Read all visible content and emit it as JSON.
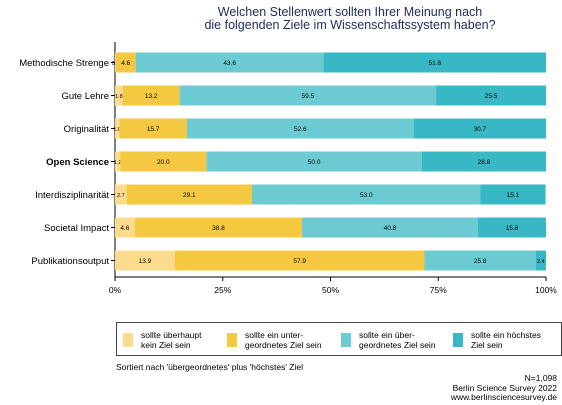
{
  "title": {
    "line1": "Welchen Stellenwert sollten Ihrer Meinung nach",
    "line2": "die folgenden Ziele im Wissenschaftssystem haben?"
  },
  "footnote": "Sortiert nach 'übergeordnetes' plus 'höchstes' Ziel",
  "credits": {
    "n": "N=1,098",
    "survey": "Berlin Science Survey 2022",
    "url": "www.berlinsciencesurvey.de"
  },
  "colors": {
    "s1": "#fbdc8e",
    "s2": "#f5c842",
    "s3": "#6ccad3",
    "s4": "#38b7c4"
  },
  "chart_data": {
    "type": "bar",
    "orientation": "horizontal",
    "stacked": true,
    "title": "Welchen Stellenwert sollten Ihrer Meinung nach die folgenden Ziele im Wissenschaftssystem haben?",
    "categories": [
      "Methodische Strenge",
      "Gute Lehre",
      "Originalität",
      "Open Science",
      "Interdisziplinarität",
      "Societal Impact",
      "Publikationsoutput"
    ],
    "bold_categories": [
      "Open Science"
    ],
    "series": [
      {
        "name": "sollte überhaupt\nkein Ziel sein",
        "values": [
          0.2,
          1.8,
          1.0,
          1.2,
          2.7,
          4.6,
          13.9
        ],
        "labels": [
          "0.2",
          "1.8",
          "1.0",
          "1.2",
          "2.7",
          "4.6",
          "13.9"
        ]
      },
      {
        "name": "sollte ein unter-\ngeordnetes Ziel sein",
        "values": [
          4.6,
          13.2,
          15.7,
          20.0,
          29.1,
          38.8,
          57.9
        ],
        "labels": [
          "4.6",
          "13.2",
          "15.7",
          "20.0",
          "29.1",
          "38.8",
          "57.9"
        ]
      },
      {
        "name": "sollte ein über-\ngeordnetes Ziel sein",
        "values": [
          43.6,
          59.5,
          52.6,
          50.0,
          53.0,
          40.8,
          25.8
        ],
        "labels": [
          "43.6",
          "59.5",
          "52.6",
          "50.0",
          "53.0",
          "40.8",
          "25.8"
        ]
      },
      {
        "name": "sollte ein höchstes\nZiel sein",
        "values": [
          51.6,
          25.5,
          30.7,
          28.8,
          15.1,
          15.8,
          2.4
        ],
        "labels": [
          "51.6",
          "25.5",
          "30.7",
          "28.8",
          "15.1",
          "15.8",
          "2.4"
        ]
      }
    ],
    "x_ticks": [
      "0%",
      "25%",
      "50%",
      "75%",
      "100%"
    ],
    "xlim": [
      0,
      100
    ],
    "legend_position": "bottom"
  }
}
